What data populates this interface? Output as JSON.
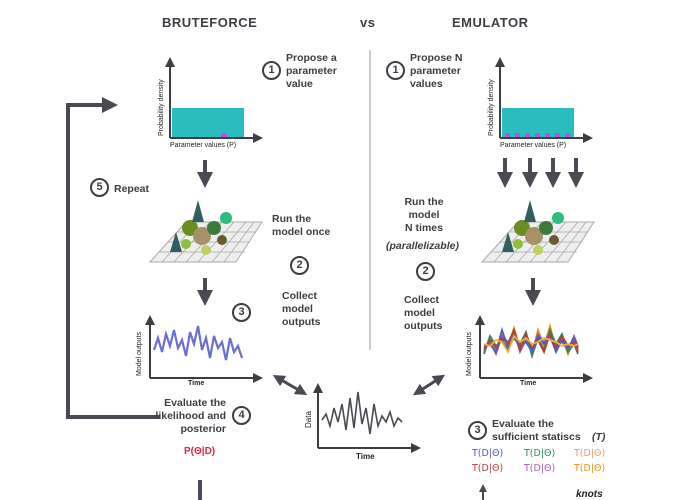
{
  "headers": {
    "left": "BRUTEFORCE",
    "vs": "vs",
    "right": "EMULATOR"
  },
  "bruteforce": {
    "step1_num": "1",
    "step1": "Propose a\nparameter\nvalue",
    "step2_num": "2",
    "run": "Run the\nmodel once",
    "collect": "Collect\nmodel\noutputs",
    "step3_num": "3",
    "step4_num": "4",
    "evaluate": "Evaluate the\nlikelihood and\nposterior",
    "posterior": "P(Θ|D)",
    "step5_num": "5",
    "repeat": "Repeat",
    "density_ylabel": "Probability density",
    "density_xlabel": "Parameter values (P)",
    "output_ylabel": "Model outputs",
    "output_xlabel": "Time"
  },
  "emulator": {
    "step1_num": "1",
    "step1": "Propose N\nparameter\nvalues",
    "run": "Run the\nmodel\nN times",
    "parallel": "(parallelizable)",
    "step2_num": "2",
    "collect": "Collect\nmodel\noutputs",
    "step3_num": "3",
    "evaluate": "Evaluate the\nsufficient statiscs",
    "evaluate_symbol": "(T)",
    "stats": [
      {
        "text": "T(D|Θ)",
        "color": "#4a5fc1"
      },
      {
        "text": "T(D|Θ)",
        "color": "#2e8b57"
      },
      {
        "text": "T(D|Θ)",
        "color": "#e8a070"
      },
      {
        "text": "T(D|Θ)",
        "color": "#b0413e"
      },
      {
        "text": "T(D|Θ)",
        "color": "#a060b0"
      },
      {
        "text": "T(D|Θ)",
        "color": "#e8950f"
      }
    ],
    "density_ylabel": "Probability density",
    "density_xlabel": "Parameter values (P)",
    "output_ylabel": "Model outputs",
    "output_xlabel": "Time",
    "bottom_label": "knots"
  },
  "data_plot": {
    "ylabel": "Data",
    "xlabel": "Time"
  },
  "colors": {
    "teal": "#2bbdbd",
    "marker": "#c04de0",
    "arrow": "#4a4a52",
    "brute_series": "#6a6fd0",
    "posterior": "#e0244a"
  }
}
